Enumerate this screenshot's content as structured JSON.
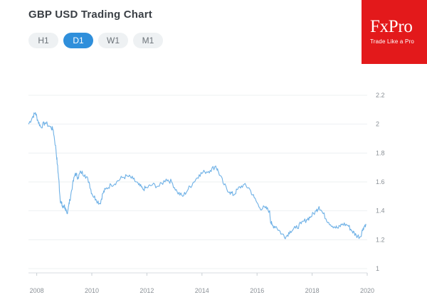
{
  "header": {
    "title": "GBP USD Trading Chart",
    "tabs": [
      {
        "label": "H1",
        "active": false
      },
      {
        "label": "D1",
        "active": true
      },
      {
        "label": "W1",
        "active": false
      },
      {
        "label": "M1",
        "active": false
      }
    ]
  },
  "logo": {
    "name": "FxPro",
    "tagline": "Trade Like a Pro",
    "color": "#e3191b"
  },
  "colors": {
    "accent": "#2f8fdb",
    "series": "#6fb1e6"
  },
  "chart_data": {
    "type": "line",
    "title": "",
    "xlabel": "",
    "ylabel": "",
    "xlim": [
      2007.7,
      2020.0
    ],
    "ylim": [
      1.0,
      2.2
    ],
    "x_ticks": [
      "2008",
      "2010",
      "2012",
      "2014",
      "2016",
      "2018",
      "2020"
    ],
    "y_ticks": [
      "1",
      "1.2",
      "1.4",
      "1.6",
      "1.8",
      "2",
      "2.2"
    ],
    "grid": true,
    "legend": "none",
    "series": [
      {
        "x": [
          2007.7,
          2007.85,
          2007.95,
          2008.05,
          2008.15,
          2008.3,
          2008.5,
          2008.6,
          2008.7,
          2008.75,
          2008.8,
          2008.85,
          2008.9,
          2008.95,
          2009.0,
          2009.05,
          2009.1,
          2009.15,
          2009.2,
          2009.3,
          2009.4,
          2009.5,
          2009.6,
          2009.75,
          2009.9,
          2010.0,
          2010.15,
          2010.3,
          2010.4,
          2010.5,
          2010.7,
          2010.9,
          2011.1,
          2011.3,
          2011.5,
          2011.7,
          2011.85,
          2012.0,
          2012.2,
          2012.45,
          2012.7,
          2012.9,
          2013.1,
          2013.3,
          2013.5,
          2013.7,
          2013.9,
          2014.1,
          2014.3,
          2014.5,
          2014.6,
          2014.8,
          2015.0,
          2015.15,
          2015.3,
          2015.5,
          2015.7,
          2015.9,
          2016.1,
          2016.3,
          2016.45,
          2016.5,
          2016.55,
          2016.7,
          2016.9,
          2017.05,
          2017.2,
          2017.4,
          2017.6,
          2017.8,
          2017.95,
          2018.15,
          2018.25,
          2018.4,
          2018.6,
          2018.8,
          2018.95,
          2019.1,
          2019.3,
          2019.45,
          2019.6,
          2019.75,
          2019.85,
          2019.95
        ],
        "y": [
          2.0,
          2.05,
          2.08,
          2.02,
          1.98,
          2.01,
          1.98,
          1.96,
          1.82,
          1.72,
          1.62,
          1.48,
          1.45,
          1.42,
          1.44,
          1.4,
          1.38,
          1.43,
          1.47,
          1.58,
          1.66,
          1.63,
          1.67,
          1.65,
          1.6,
          1.52,
          1.48,
          1.45,
          1.52,
          1.55,
          1.58,
          1.6,
          1.63,
          1.64,
          1.62,
          1.58,
          1.55,
          1.56,
          1.58,
          1.57,
          1.62,
          1.6,
          1.53,
          1.5,
          1.55,
          1.6,
          1.65,
          1.67,
          1.68,
          1.71,
          1.67,
          1.58,
          1.53,
          1.51,
          1.55,
          1.58,
          1.56,
          1.49,
          1.42,
          1.42,
          1.4,
          1.32,
          1.3,
          1.29,
          1.24,
          1.22,
          1.26,
          1.28,
          1.31,
          1.34,
          1.36,
          1.4,
          1.43,
          1.38,
          1.32,
          1.29,
          1.28,
          1.31,
          1.3,
          1.26,
          1.23,
          1.22,
          1.28,
          1.31
        ]
      }
    ]
  }
}
